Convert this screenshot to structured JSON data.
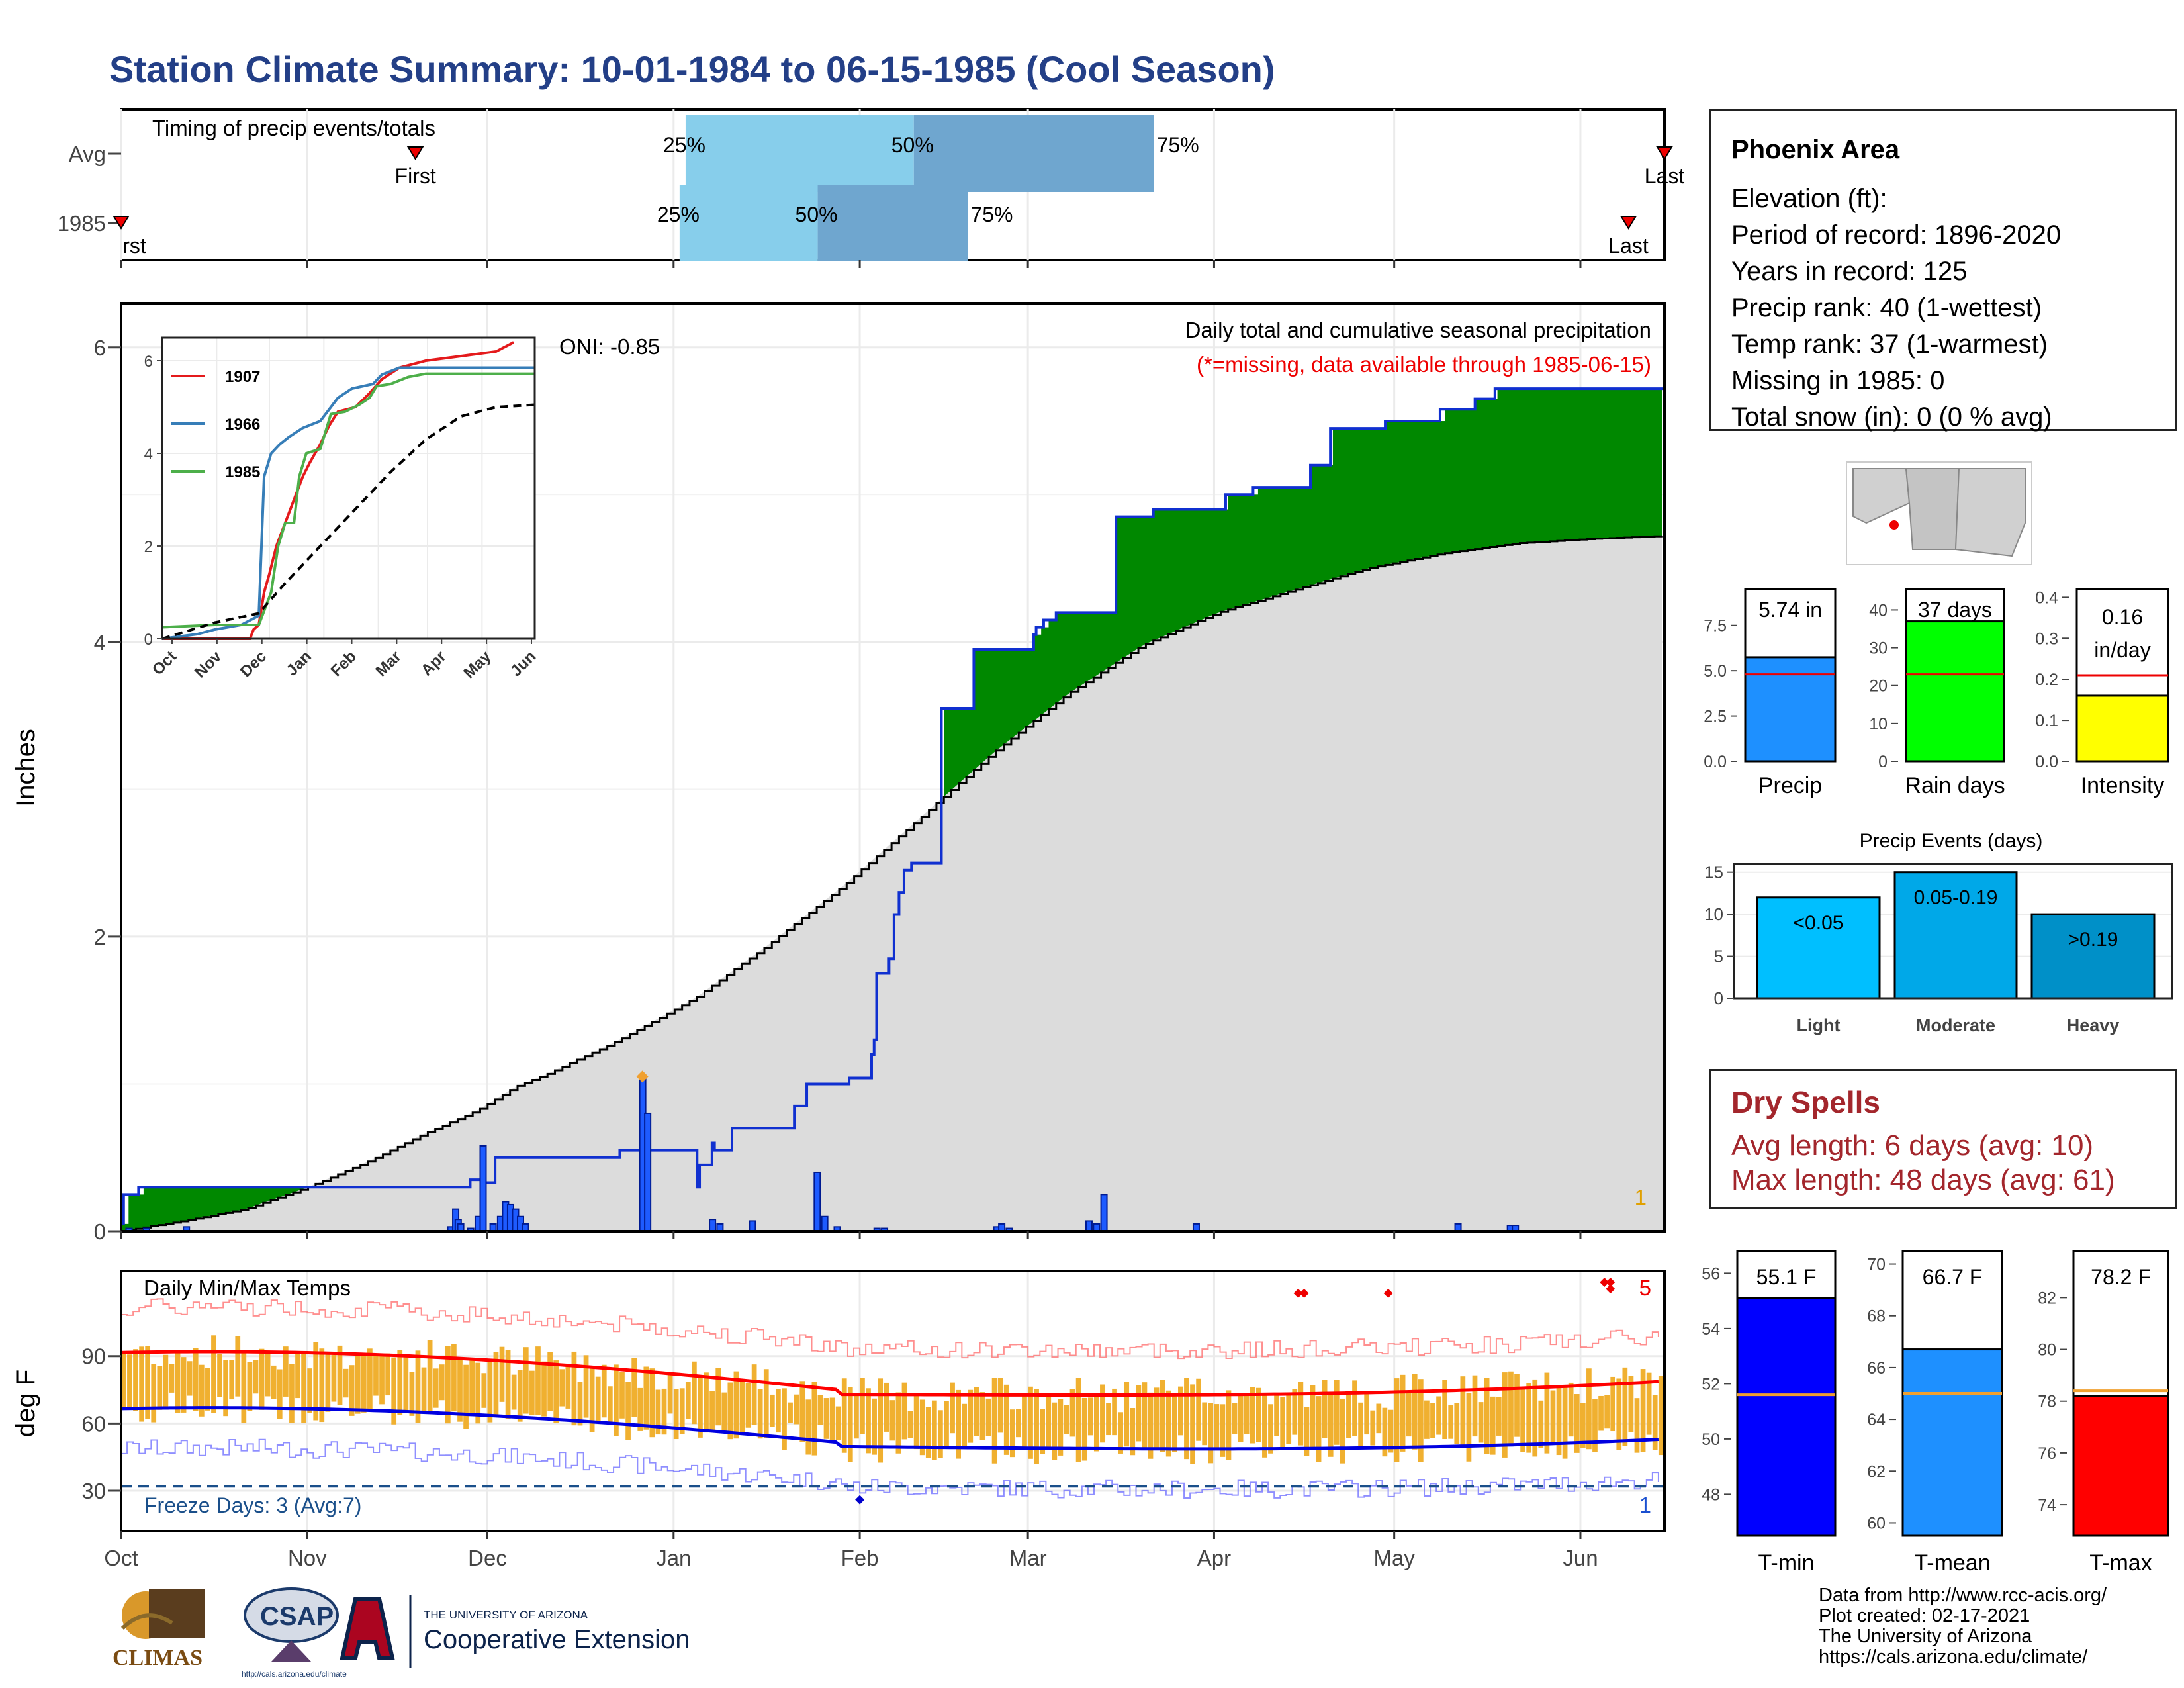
{
  "title": "Station Climate Summary: 10-01-1984 to 06-15-1985 (Cool Season)",
  "station": {
    "name": "Phoenix Area",
    "lines": [
      "Elevation (ft):",
      "Period of record: 1896-2020",
      "Years in record: 125",
      "Precip rank: 40 (1-wettest)",
      "Temp rank: 37 (1-warmest)",
      "Missing in 1985: 0",
      "Total snow (in): 0 (0 % avg)"
    ]
  },
  "dry_spells": {
    "title": "Dry Spells",
    "avg_length": "Avg length: 6 days (avg: 10)",
    "max_length": "Max length: 48 days (avg: 61)"
  },
  "credit": "Data from http://www.rcc-acis.org/\nPlot created: 02-17-2021\nThe University of Arizona\nhttps://cals.arizona.edu/climate/",
  "logos": {
    "climas": "CLIMAS",
    "csap": "CSAP",
    "csap_url": "http://cals.arizona.edu/climate",
    "univ_small": "THE UNIVERSITY OF ARIZONA",
    "univ_big": "Cooperative Extension"
  },
  "colors": {
    "title": "#233f87",
    "green": "#008800",
    "brown": "#8b5a00",
    "blue_bar": "#1e5bff",
    "orange": "#f0b030",
    "red": "#ff0000",
    "dry": "#a3262c"
  },
  "chart_data": [
    {
      "id": "timing",
      "type": "bar",
      "title": "Timing of precip events/totals",
      "categories": [
        "Avg",
        "1985"
      ],
      "series": [
        {
          "name": "Avg",
          "first": "Nov 19",
          "p25": "Jan 3",
          "p50": "Feb 10",
          "p75": "Mar 22",
          "last": "Jun 15"
        },
        {
          "name": "1985",
          "first": "Oct 1",
          "p25": "Jan 2",
          "p50": "Jan 25",
          "p75": "Feb 19",
          "last": "Jun 9"
        }
      ],
      "labels": {
        "first": "First",
        "last": "Last",
        "first_1985": "rst",
        "p25": "25%",
        "p50": "50%",
        "p75": "75%"
      }
    },
    {
      "id": "precip-main",
      "type": "area",
      "title": "Daily total and cumulative seasonal precipitation",
      "subtitle": "(*=missing, data available through 1985-06-15)",
      "oni": "ONI: -0.85",
      "ylabel": "Inches",
      "ylim": [
        0,
        6.3
      ],
      "yticks": [
        0,
        2,
        4,
        6
      ],
      "xticks": [
        "Oct",
        "Nov",
        "Dec",
        "Jan",
        "Feb",
        "Mar",
        "Apr",
        "May",
        "Jun"
      ],
      "corner_label": "1",
      "cumulative_1985": [
        [
          0,
          0.05
        ],
        [
          1,
          0.25
        ],
        [
          6,
          0.25
        ],
        [
          7,
          0.3
        ],
        [
          130,
          0.3
        ],
        [
          140,
          0.35
        ],
        [
          145,
          0.33
        ],
        [
          150,
          0.5
        ],
        [
          200,
          0.55
        ],
        [
          231,
          0.3
        ],
        [
          232,
          0.45
        ],
        [
          237,
          0.6
        ],
        [
          238,
          0.55
        ],
        [
          245,
          0.7
        ],
        [
          270,
          0.85
        ],
        [
          275,
          1.0
        ],
        [
          291,
          1.0
        ],
        [
          292,
          1.04
        ],
        [
          301,
          1.2
        ],
        [
          302,
          1.3
        ],
        [
          303,
          1.75
        ],
        [
          308,
          1.85
        ],
        [
          310,
          2.15
        ],
        [
          312,
          2.3
        ],
        [
          314,
          2.45
        ],
        [
          317,
          2.5
        ],
        [
          328,
          2.5
        ],
        [
          329,
          3.55
        ],
        [
          341,
          3.55
        ],
        [
          342,
          3.95
        ],
        [
          365,
          3.95
        ],
        [
          366,
          4.05
        ],
        [
          367,
          4.1
        ],
        [
          370,
          4.15
        ],
        [
          375,
          4.2
        ],
        [
          398,
          4.2
        ],
        [
          399,
          4.85
        ],
        [
          413,
          4.85
        ],
        [
          414,
          4.9
        ],
        [
          442,
          4.9
        ],
        [
          443,
          5.0
        ],
        [
          453,
          5.0
        ],
        [
          454,
          5.05
        ],
        [
          476,
          5.05
        ],
        [
          477,
          5.2
        ],
        [
          484,
          5.2
        ],
        [
          485,
          5.45
        ],
        [
          506,
          5.45
        ],
        [
          507,
          5.5
        ],
        [
          528,
          5.5
        ],
        [
          529,
          5.58
        ],
        [
          542,
          5.58
        ],
        [
          543,
          5.65
        ],
        [
          550,
          5.65
        ],
        [
          551,
          5.72
        ],
        [
          619,
          5.72
        ]
      ],
      "normal_cumulative": [
        [
          0,
          0
        ],
        [
          25,
          0.07
        ],
        [
          50,
          0.15
        ],
        [
          75,
          0.3
        ],
        [
          100,
          0.48
        ],
        [
          120,
          0.65
        ],
        [
          143,
          0.82
        ],
        [
          158,
          0.98
        ],
        [
          170,
          1.06
        ],
        [
          200,
          1.3
        ],
        [
          230,
          1.58
        ],
        [
          260,
          1.95
        ],
        [
          290,
          2.35
        ],
        [
          320,
          2.8
        ],
        [
          350,
          3.25
        ],
        [
          380,
          3.65
        ],
        [
          410,
          3.98
        ],
        [
          440,
          4.2
        ],
        [
          470,
          4.35
        ],
        [
          500,
          4.5
        ],
        [
          530,
          4.6
        ],
        [
          560,
          4.67
        ],
        [
          590,
          4.7
        ],
        [
          619,
          4.72
        ]
      ],
      "daily_precip": [
        [
          2,
          0.02
        ],
        [
          9,
          0.02
        ],
        [
          25,
          0.03
        ],
        [
          131,
          0.03
        ],
        [
          133,
          0.15
        ],
        [
          134,
          0.08
        ],
        [
          135,
          0.05
        ],
        [
          139,
          0.02
        ],
        [
          142,
          0.1
        ],
        [
          144,
          0.58
        ],
        [
          148,
          0.05
        ],
        [
          151,
          0.1
        ],
        [
          153,
          0.2
        ],
        [
          155,
          0.18
        ],
        [
          157,
          0.15
        ],
        [
          159,
          0.1
        ],
        [
          161,
          0.05
        ],
        [
          208,
          1.05
        ],
        [
          210,
          0.8
        ],
        [
          236,
          0.08
        ],
        [
          239,
          0.05
        ],
        [
          252,
          0.07
        ],
        [
          278,
          0.4
        ],
        [
          281,
          0.1
        ],
        [
          286,
          0.03
        ],
        [
          302,
          0.02
        ],
        [
          305,
          0.02
        ],
        [
          350,
          0.03
        ],
        [
          352,
          0.05
        ],
        [
          355,
          0.02
        ],
        [
          387,
          0.07
        ],
        [
          390,
          0.05
        ],
        [
          393,
          0.25
        ],
        [
          430,
          0.05
        ],
        [
          535,
          0.05
        ],
        [
          556,
          0.04
        ],
        [
          558,
          0.04
        ]
      ],
      "max_marker": {
        "x": 208,
        "y": 1.05
      }
    },
    {
      "id": "precip-inset",
      "type": "line",
      "ylim": [
        0,
        6.5
      ],
      "yticks": [
        0,
        2,
        4,
        6
      ],
      "xticks": [
        "Oct",
        "Nov",
        "Dec",
        "Jan",
        "Feb",
        "Mar",
        "Apr",
        "May",
        "Jun"
      ],
      "series": [
        {
          "name": "1907",
          "color": "#e41a1c",
          "points": [
            [
              0,
              0
            ],
            [
              50,
              0
            ],
            [
              52,
              0.2
            ],
            [
              55,
              0.3
            ],
            [
              58,
              1.0
            ],
            [
              61,
              1.4
            ],
            [
              65,
              2.0
            ],
            [
              70,
              2.5
            ],
            [
              75,
              3.0
            ],
            [
              80,
              3.5
            ],
            [
              84,
              3.8
            ],
            [
              90,
              4.2
            ],
            [
              95,
              4.6
            ],
            [
              100,
              4.9
            ],
            [
              110,
              5.0
            ],
            [
              118,
              5.3
            ],
            [
              125,
              5.6
            ],
            [
              135,
              5.85
            ],
            [
              150,
              6.0
            ],
            [
              170,
              6.1
            ],
            [
              190,
              6.2
            ],
            [
              200,
              6.4
            ]
          ]
        },
        {
          "name": "1966",
          "color": "#377eb8",
          "points": [
            [
              0,
              0
            ],
            [
              20,
              0.1
            ],
            [
              30,
              0.2
            ],
            [
              45,
              0.3
            ],
            [
              55,
              0.5
            ],
            [
              58,
              3.5
            ],
            [
              62,
              4.0
            ],
            [
              67,
              4.2
            ],
            [
              72,
              4.35
            ],
            [
              80,
              4.55
            ],
            [
              90,
              4.7
            ],
            [
              100,
              5.2
            ],
            [
              108,
              5.4
            ],
            [
              120,
              5.5
            ],
            [
              125,
              5.7
            ],
            [
              135,
              5.85
            ],
            [
              212,
              5.85
            ]
          ]
        },
        {
          "name": "1985",
          "color": "#4daf4a",
          "points": [
            [
              0,
              0.25
            ],
            [
              30,
              0.3
            ],
            [
              55,
              0.3
            ],
            [
              62,
              1.0
            ],
            [
              66,
              2.0
            ],
            [
              70,
              2.5
            ],
            [
              75,
              2.5
            ],
            [
              78,
              3.5
            ],
            [
              82,
              4.0
            ],
            [
              90,
              4.1
            ],
            [
              96,
              4.85
            ],
            [
              104,
              4.9
            ],
            [
              112,
              5.05
            ],
            [
              118,
              5.2
            ],
            [
              122,
              5.45
            ],
            [
              130,
              5.5
            ],
            [
              140,
              5.65
            ],
            [
              150,
              5.72
            ],
            [
              212,
              5.72
            ]
          ]
        },
        {
          "name": "avg",
          "color": "#000000",
          "dashed": true,
          "points": [
            [
              0,
              0
            ],
            [
              30,
              0.35
            ],
            [
              55,
              0.55
            ],
            [
              70,
              1.2
            ],
            [
              90,
              2.0
            ],
            [
              110,
              2.8
            ],
            [
              130,
              3.6
            ],
            [
              150,
              4.3
            ],
            [
              170,
              4.8
            ],
            [
              190,
              5.0
            ],
            [
              212,
              5.05
            ]
          ]
        }
      ]
    },
    {
      "id": "summary-precip",
      "type": "bar",
      "categories": [
        "Precip",
        "Rain days",
        "Intensity"
      ],
      "values": [
        5.74,
        37,
        0.16
      ],
      "averages": [
        4.8,
        23,
        0.21
      ],
      "labels": [
        "5.74 in",
        "37 days",
        "0.16",
        "in/day"
      ],
      "yticks": [
        [
          0,
          2.5,
          5.0,
          7.5
        ],
        [
          0,
          10,
          20,
          30,
          40
        ],
        [
          0.0,
          0.1,
          0.2,
          0.3,
          0.4
        ]
      ]
    },
    {
      "id": "precip-events",
      "type": "bar",
      "title": "Precip Events (days)",
      "categories": [
        "Light",
        "Moderate",
        "Heavy"
      ],
      "bar_labels": [
        "<0.05",
        "0.05-0.19",
        ">0.19"
      ],
      "values": [
        12,
        15,
        10
      ],
      "yticks": [
        0,
        5,
        10,
        15
      ]
    },
    {
      "id": "daily-temps",
      "type": "line",
      "title": "Daily Min/Max Temps",
      "ylabel": "deg F",
      "yticks": [
        30,
        60,
        90
      ],
      "xticks": [
        "Oct",
        "Nov",
        "Dec",
        "Jan",
        "Feb",
        "Mar",
        "Apr",
        "May",
        "Jun"
      ],
      "freeze_label": "Freeze Days: 3 (Avg:7)",
      "freeze_line": 32,
      "corner_top": "5",
      "corner_bottom": "1"
    },
    {
      "id": "summary-temps",
      "type": "bar",
      "categories": [
        "T-min",
        "T-mean",
        "T-max"
      ],
      "values": [
        55.1,
        66.7,
        78.2
      ],
      "averages": [
        51.6,
        65.0,
        78.4
      ],
      "labels": [
        "55.1 F",
        "66.7 F",
        "78.2 F"
      ],
      "yticks": [
        [
          48,
          50,
          52,
          54,
          56
        ],
        [
          60,
          62,
          64,
          66,
          68,
          70
        ],
        [
          74,
          76,
          78,
          80,
          82
        ]
      ]
    }
  ]
}
